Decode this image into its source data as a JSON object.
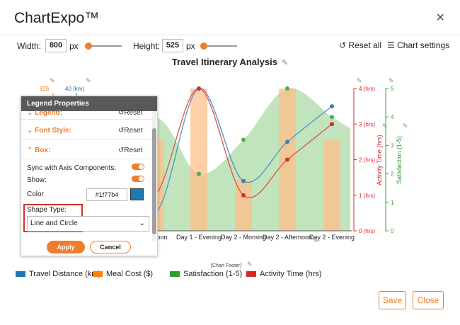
{
  "app": {
    "title": "ChartExpo™",
    "close_icon": "×"
  },
  "toolbar": {
    "width_label": "Width:",
    "width_value": "800",
    "width_unit": "px",
    "height_label": "Height:",
    "height_value": "525",
    "height_unit": "px",
    "reset_all_label": "Reset all",
    "chart_settings_label": "Chart settings"
  },
  "chart_data": {
    "type": "bar",
    "title": "Travel Itinerary Analysis",
    "categories": [
      "Day 1 - Afternoon",
      "Day 1 - Evening",
      "Day 2 - Morning",
      "Day 2 - Afternoon",
      "Day 2 - Evening"
    ],
    "tick_labels": [
      "fternoon",
      "Day 1 - Evening",
      "Day 2 - Morning",
      "Day 2 - Afternoon",
      "Day 2 - Evening"
    ],
    "series": [
      {
        "name": "Travel Distance (km)",
        "type": "line",
        "color": "#1f77b4",
        "values": [
          5,
          40,
          14,
          25,
          35
        ]
      },
      {
        "name": "Meal Cost ($)",
        "type": "bar",
        "color": "#ff7f0e",
        "values": [
          16,
          25,
          9,
          25,
          16
        ]
      },
      {
        "name": "Satisfaction (1-5)",
        "type": "area",
        "color": "#2ca02c",
        "values": [
          4,
          2,
          3.2,
          5,
          4
        ]
      },
      {
        "name": "Activity Time (hrs)",
        "type": "line",
        "color": "#d62728",
        "values": [
          1,
          4,
          1,
          2,
          3
        ]
      }
    ],
    "right_axes": [
      {
        "title": "Activity Time (hrs)",
        "color": "#d62728",
        "ticks": [
          "0 (hrs)",
          "1 (hrs)",
          "2 (hrs)",
          "3 (hrs)",
          "4 (hrs)"
        ]
      },
      {
        "title": "Satisfaction (1-5)",
        "color": "#2ca02c",
        "ticks": [
          "0",
          "1",
          "2",
          "3",
          "4",
          "5"
        ]
      }
    ],
    "left_axis_top_labels": [
      "$25",
      "40 (km)"
    ],
    "footer": "[Chart Footer]",
    "legend_position": "bottom"
  },
  "panel": {
    "title": "Legend Properties",
    "legend_section_label": "Legend:",
    "font_style_label": "Font Style:",
    "box_label": "Box:",
    "reset_label": "Reset",
    "sync_label": "Sync with Axis Components:",
    "show_label": "Show:",
    "color_label": "Color",
    "color_value": "#1f77b4",
    "shape_type_label": "Shape Type:",
    "shape_type_value": "Line and Circle",
    "apply_label": "Apply",
    "cancel_label": "Cancel"
  },
  "footer_buttons": {
    "save_label": "Save",
    "close_label": "Close"
  },
  "colors": {
    "accent": "#ef7d2c",
    "blue": "#1f77b4",
    "orange": "#ff7f0e",
    "green": "#2ca02c",
    "red": "#d62728"
  }
}
